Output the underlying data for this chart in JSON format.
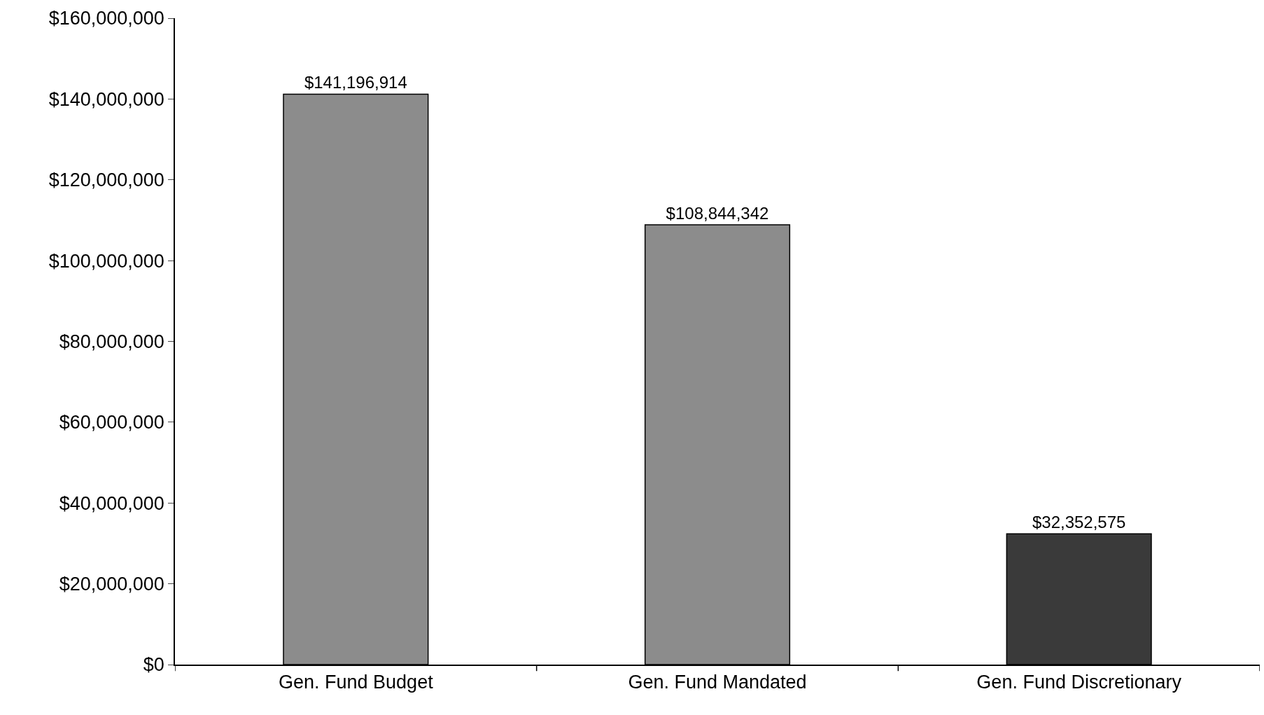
{
  "chart_data": {
    "type": "bar",
    "categories": [
      "Gen. Fund Budget",
      "Gen. Fund Mandated",
      "Gen. Fund Discretionary"
    ],
    "values": [
      141196914,
      108844342,
      32352575
    ],
    "colors": [
      "#8c8c8c",
      "#8c8c8c",
      "#3a3a3a"
    ],
    "value_labels": [
      "$141,196,914",
      "$108,844,342",
      "$32,352,575"
    ],
    "ylim": [
      0,
      160000000
    ],
    "yticks": [
      {
        "value": 0,
        "label": "$0"
      },
      {
        "value": 20000000,
        "label": "$20,000,000"
      },
      {
        "value": 40000000,
        "label": "$40,000,000"
      },
      {
        "value": 60000000,
        "label": "$60,000,000"
      },
      {
        "value": 80000000,
        "label": "$80,000,000"
      },
      {
        "value": 100000000,
        "label": "$100,000,000"
      },
      {
        "value": 120000000,
        "label": "$120,000,000"
      },
      {
        "value": 140000000,
        "label": "$140,000,000"
      },
      {
        "value": 160000000,
        "label": "$160,000,000"
      }
    ]
  }
}
